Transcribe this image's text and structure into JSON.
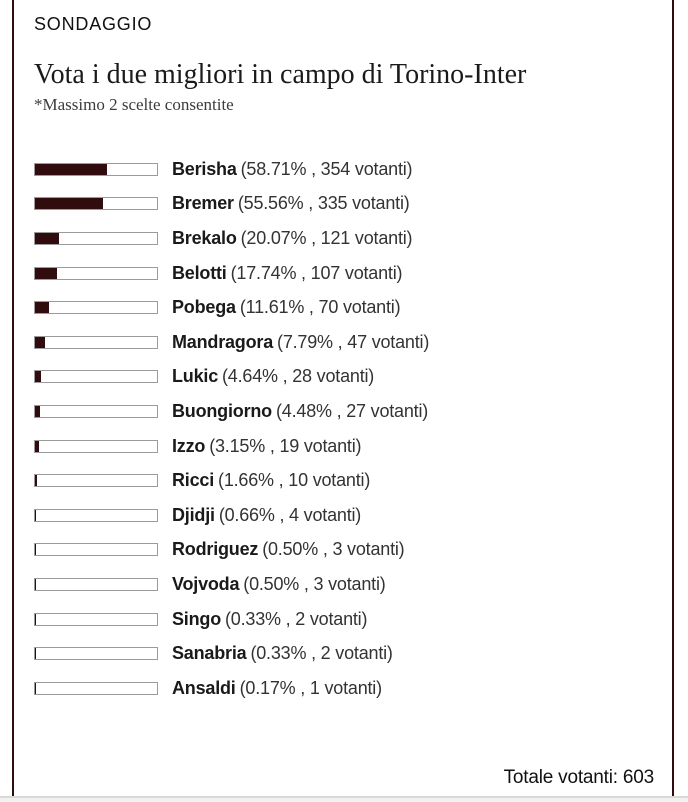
{
  "panel": {
    "kicker": "SONDAGGIO",
    "title": "Vota i due migliori in campo di Torino-Inter",
    "subtitle": "*Massimo 2 scelte consentite",
    "total_label": "Totale votanti: 603"
  },
  "colors": {
    "bar_fill": "#310c0e",
    "panel_border": "#310c0e",
    "track_border": "#9b9b9b"
  },
  "chart_data": {
    "type": "bar",
    "orientation": "horizontal",
    "title": "Vota i due migliori in campo di Torino-Inter",
    "note": "*Massimo 2 scelte consentite",
    "xlim": [
      0,
      100
    ],
    "unit_pct": "%",
    "unit_votes": "votanti",
    "total_voters": 603,
    "bar_color": "#310c0e",
    "categories": [
      "Berisha",
      "Bremer",
      "Brekalo",
      "Belotti",
      "Pobega",
      "Mandragora",
      "Lukic",
      "Buongiorno",
      "Izzo",
      "Ricci",
      "Djidji",
      "Rodriguez",
      "Vojvoda",
      "Singo",
      "Sanabria",
      "Ansaldi"
    ],
    "values_pct": [
      "58.71",
      "55.56",
      "20.07",
      "17.74",
      "11.61",
      "7.79",
      "4.64",
      "4.48",
      "3.15",
      "1.66",
      "0.66",
      "0.50",
      "0.50",
      "0.33",
      "0.33",
      "0.17"
    ],
    "votes": [
      354,
      335,
      121,
      107,
      70,
      47,
      28,
      27,
      19,
      10,
      4,
      3,
      3,
      2,
      2,
      1
    ]
  }
}
